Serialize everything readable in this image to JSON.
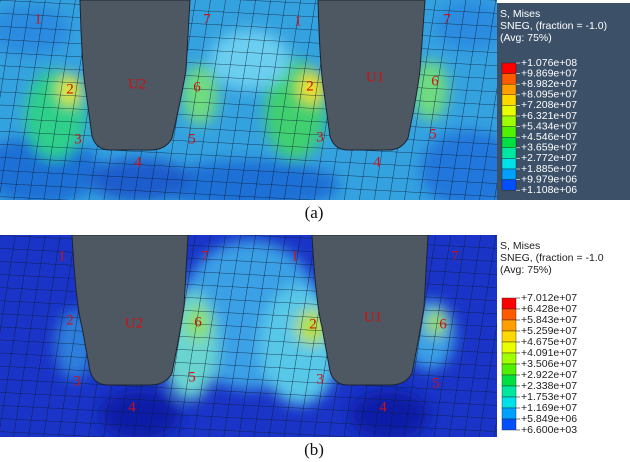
{
  "panels": [
    {
      "caption": "(a)",
      "legend": {
        "title": [
          "S, Mises",
          "SNEG, (fraction = -1.0)",
          "(Avg: 75%)"
        ],
        "values": [
          "+1.076e+08",
          "+9.869e+07",
          "+8.982e+07",
          "+8.095e+07",
          "+7.208e+07",
          "+6.321e+07",
          "+5.434e+07",
          "+4.546e+07",
          "+3.659e+07",
          "+2.772e+07",
          "+1.885e+07",
          "+9.979e+06",
          "+1.108e+06"
        ],
        "colors": [
          "#ff0000",
          "#ff5a00",
          "#ffa000",
          "#ffd800",
          "#e8ff00",
          "#a0ff00",
          "#50f000",
          "#00e040",
          "#00e8a0",
          "#00e0e8",
          "#00a0ff",
          "#0050ff"
        ]
      },
      "labels": [
        "1",
        "7",
        "1",
        "7",
        "U2",
        "U1",
        "2",
        "6",
        "2",
        "6",
        "3",
        "5",
        "3",
        "5",
        "4",
        "4"
      ]
    },
    {
      "caption": "(b)",
      "legend": {
        "title": [
          "S, Mises",
          "SNEG, (fraction = -1.0",
          "(Avg: 75%)"
        ],
        "values": [
          "+7.012e+07",
          "+6.428e+07",
          "+5.843e+07",
          "+5.259e+07",
          "+4.675e+07",
          "+4.091e+07",
          "+3.506e+07",
          "+2.922e+07",
          "+2.338e+07",
          "+1.753e+07",
          "+1.169e+07",
          "+5.849e+06",
          "+6.600e+03"
        ],
        "colors": [
          "#ff0000",
          "#ff5a00",
          "#ffa000",
          "#ffd800",
          "#e8ff00",
          "#a0ff00",
          "#50f000",
          "#00e040",
          "#00e8a0",
          "#00e0e8",
          "#00a0ff",
          "#0050ff"
        ]
      },
      "labels": [
        "1",
        "7",
        "1",
        "7",
        "U2",
        "U1",
        "2",
        "6",
        "2",
        "6",
        "3",
        "5",
        "3",
        "5",
        "4",
        "4"
      ]
    }
  ]
}
